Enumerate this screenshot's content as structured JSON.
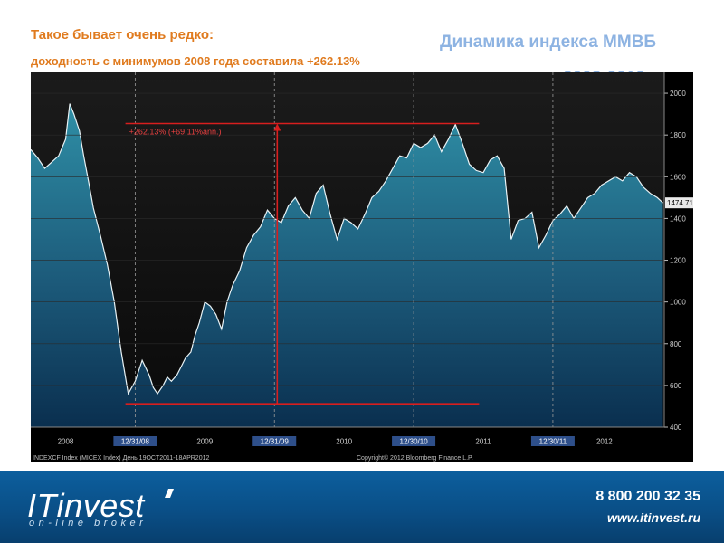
{
  "header": {
    "line1": "Такое бывает очень редко:",
    "line2": "доходность с минимумов 2008 года составила +262.13%",
    "title": "Динамика индекса ММВБ",
    "title_line2": "2008-2012 гг."
  },
  "chart_data": {
    "type": "area",
    "ylim": [
      400,
      2100
    ],
    "yticks": [
      400,
      600,
      800,
      1000,
      1200,
      1400,
      1600,
      1800,
      2000
    ],
    "x_range": [
      2007.75,
      2012.3
    ],
    "x": [
      2007.75,
      2007.8,
      2007.85,
      2007.9,
      2007.95,
      2008.0,
      2008.03,
      2008.06,
      2008.1,
      2008.13,
      2008.17,
      2008.2,
      2008.25,
      2008.3,
      2008.35,
      2008.4,
      2008.45,
      2008.5,
      2008.55,
      2008.6,
      2008.63,
      2008.66,
      2008.7,
      2008.73,
      2008.76,
      2008.8,
      2008.83,
      2008.86,
      2008.9,
      2008.93,
      2008.96,
      2009.0,
      2009.04,
      2009.08,
      2009.12,
      2009.16,
      2009.2,
      2009.25,
      2009.3,
      2009.35,
      2009.4,
      2009.45,
      2009.5,
      2009.55,
      2009.6,
      2009.65,
      2009.7,
      2009.75,
      2009.8,
      2009.85,
      2009.9,
      2009.95,
      2010.0,
      2010.05,
      2010.1,
      2010.15,
      2010.2,
      2010.25,
      2010.3,
      2010.35,
      2010.4,
      2010.45,
      2010.5,
      2010.55,
      2010.6,
      2010.65,
      2010.7,
      2010.75,
      2010.8,
      2010.85,
      2010.9,
      2010.95,
      2011.0,
      2011.05,
      2011.1,
      2011.15,
      2011.2,
      2011.25,
      2011.3,
      2011.35,
      2011.4,
      2011.45,
      2011.5,
      2011.55,
      2011.6,
      2011.65,
      2011.7,
      2011.75,
      2011.8,
      2011.85,
      2011.9,
      2011.95,
      2012.0,
      2012.05,
      2012.1,
      2012.15,
      2012.2,
      2012.25,
      2012.29
    ],
    "y": [
      1730,
      1690,
      1640,
      1670,
      1700,
      1780,
      1950,
      1900,
      1820,
      1700,
      1560,
      1450,
      1320,
      1180,
      1000,
      760,
      560,
      620,
      720,
      650,
      590,
      560,
      600,
      640,
      620,
      650,
      690,
      730,
      760,
      840,
      900,
      1000,
      980,
      940,
      870,
      1000,
      1080,
      1150,
      1260,
      1320,
      1360,
      1440,
      1400,
      1380,
      1460,
      1500,
      1440,
      1400,
      1520,
      1560,
      1420,
      1300,
      1400,
      1380,
      1350,
      1420,
      1500,
      1530,
      1580,
      1640,
      1700,
      1690,
      1760,
      1740,
      1760,
      1800,
      1720,
      1780,
      1850,
      1760,
      1660,
      1630,
      1620,
      1680,
      1700,
      1640,
      1300,
      1390,
      1400,
      1430,
      1260,
      1320,
      1390,
      1420,
      1460,
      1400,
      1450,
      1500,
      1520,
      1560,
      1580,
      1600,
      1580,
      1620,
      1600,
      1550,
      1520,
      1500,
      1474.71
    ],
    "xticks": [
      {
        "x": 2008.0,
        "label": "2008",
        "boxed": false
      },
      {
        "x": 2008.5,
        "label": "12/31/08",
        "boxed": true
      },
      {
        "x": 2009.0,
        "label": "2009",
        "boxed": false
      },
      {
        "x": 2009.5,
        "label": "12/31/09",
        "boxed": true
      },
      {
        "x": 2010.0,
        "label": "2010",
        "boxed": false
      },
      {
        "x": 2010.5,
        "label": "12/30/10",
        "boxed": true
      },
      {
        "x": 2011.0,
        "label": "2011",
        "boxed": false
      },
      {
        "x": 2011.5,
        "label": "12/30/11",
        "boxed": true
      },
      {
        "x": 2011.87,
        "label": "2012",
        "boxed": false
      }
    ],
    "last_value_label": "1474.71",
    "last_value": 1474.71,
    "annotation": {
      "text": "+262.13% (+69.11%ann.)",
      "low_value": 512,
      "high_value": 1855,
      "low_x_range": [
        2008.43,
        2010.97
      ],
      "high_x_range": [
        2008.43,
        2010.97
      ],
      "arrow_x": 2009.52
    },
    "footer_left": "INDEXCF Index (MICEX Index)  День 19OCT2011-18APR2012",
    "footer_right": "Copyright© 2012 Bloomberg Finance L.P."
  },
  "footer": {
    "brand": "ITinvest",
    "tagline": "on-line broker",
    "phone": "8 800 200 32 35",
    "website": "www.itinvest.ru"
  }
}
